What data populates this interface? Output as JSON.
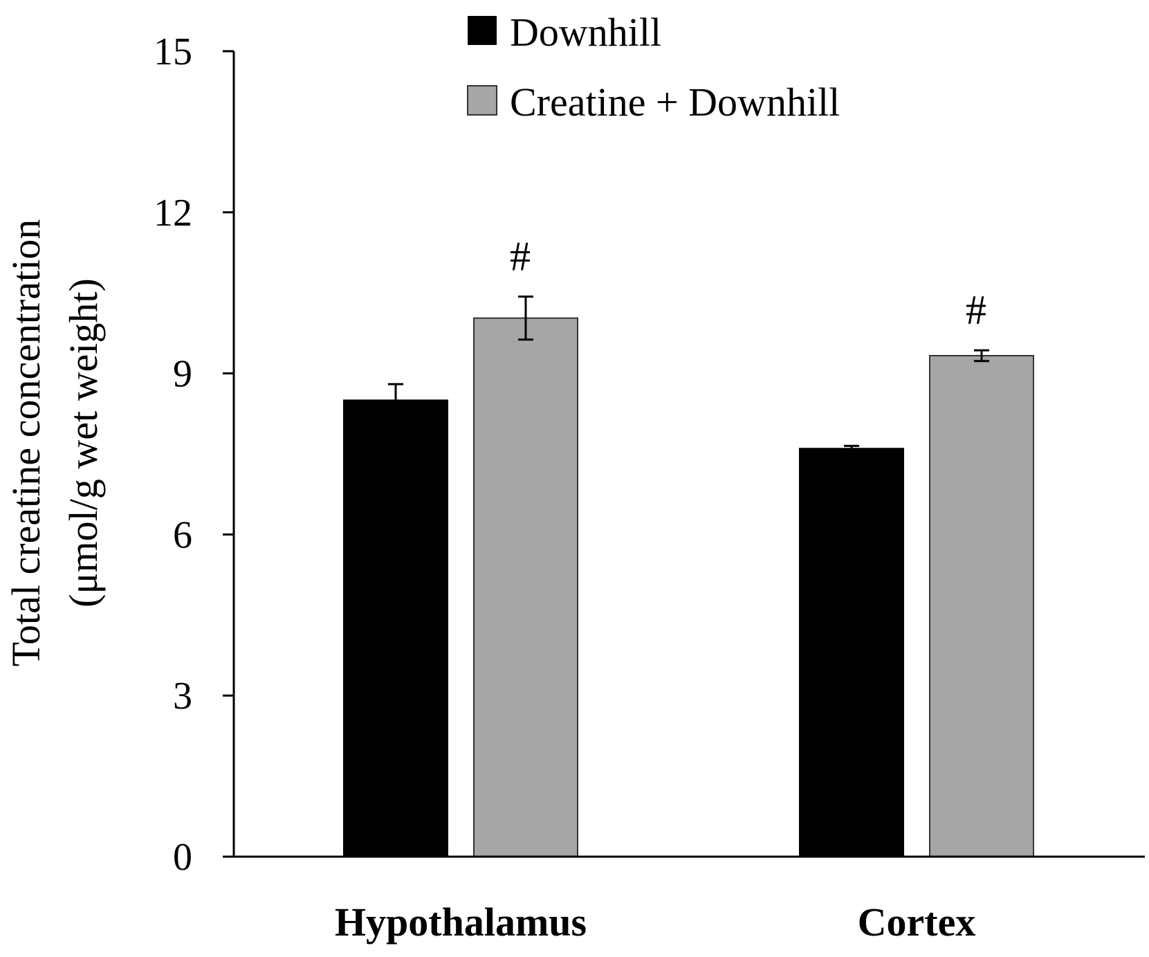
{
  "chart_data": {
    "type": "bar",
    "categories": [
      "Hypothalamus",
      "Cortex"
    ],
    "series": [
      {
        "name": "Downhill",
        "color": "#000000",
        "values": [
          8.5,
          7.6
        ],
        "errors": [
          0.3,
          0.05
        ],
        "annotations": [
          "",
          ""
        ]
      },
      {
        "name": "Creatine + Downhill",
        "color": "#a6a6a6",
        "values": [
          10.03,
          9.33
        ],
        "errors": [
          0.4,
          0.1
        ],
        "annotations": [
          "#",
          "#"
        ]
      }
    ],
    "ylabel_line1": "Total creatine concentration",
    "ylabel_line2": "(μmol/g wet weight)",
    "xlabel": "",
    "ylim": [
      0,
      15
    ],
    "yticks": [
      "0",
      "3",
      "6",
      "9",
      "12",
      "15"
    ],
    "legend_position": "top-center"
  }
}
